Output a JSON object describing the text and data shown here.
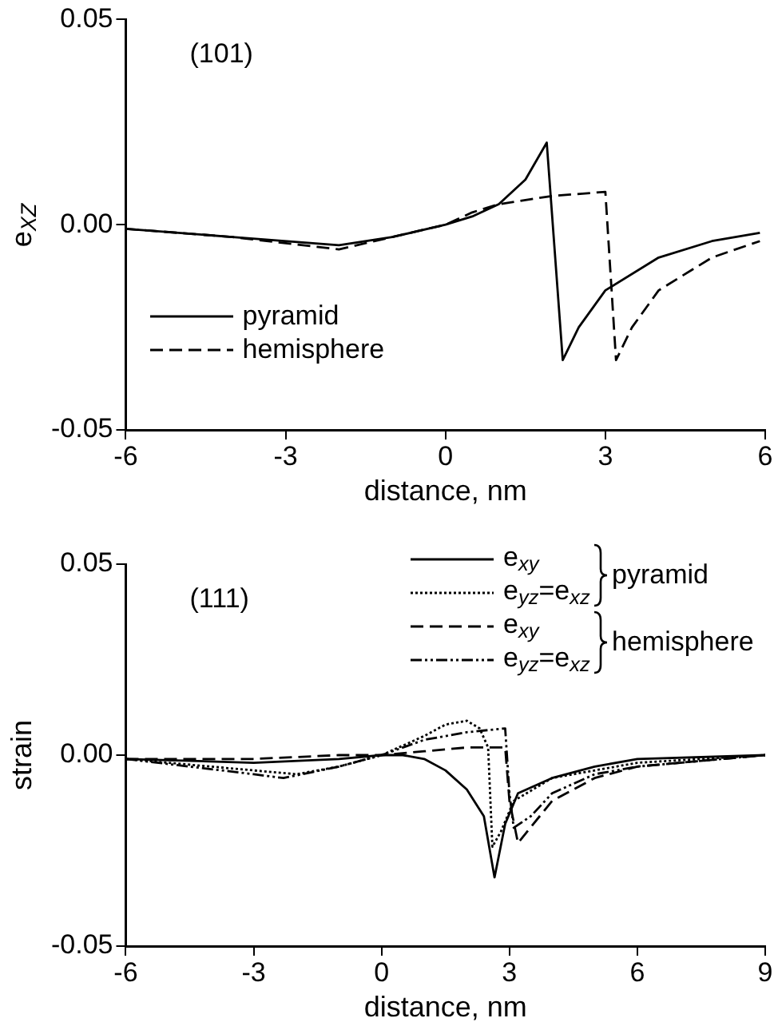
{
  "chart_data": [
    {
      "type": "line",
      "ylabel": "e$_{XZ}$",
      "xlabel": "distance, nm",
      "annotations": [
        "(101)"
      ],
      "xlim": [
        -6,
        6
      ],
      "xticks": [
        -6,
        -3,
        0,
        3,
        6
      ],
      "ylim": [
        -0.05,
        0.05
      ],
      "yticks": [
        {
          "value": -0.05,
          "label": "-0.05"
        },
        {
          "value": 0,
          "label": "0.00"
        },
        {
          "value": 0.05,
          "label": "0.05"
        }
      ],
      "grid": false,
      "legend": "bottom left",
      "marker": "none",
      "series": [
        {
          "name": "pyramid",
          "color": "#000000",
          "line_style": "solid",
          "x": [
            -6,
            -4,
            -2,
            -1,
            0,
            0.5,
            1,
            1.5,
            1.9,
            2.2,
            2.5,
            3,
            4,
            5,
            5.9
          ],
          "values": [
            -0.001,
            -0.003,
            -0.005,
            -0.003,
            0,
            0.002,
            0.005,
            0.011,
            0.02,
            -0.033,
            -0.025,
            -0.016,
            -0.008,
            -0.004,
            -0.002
          ]
        },
        {
          "name": "hemisphere",
          "color": "#000000",
          "line_style": "dashed",
          "x": [
            -6,
            -4,
            -2,
            -1,
            0,
            0.5,
            1,
            2,
            3,
            3.2,
            3.5,
            4,
            5,
            5.9
          ],
          "values": [
            -0.001,
            -0.003,
            -0.006,
            -0.003,
            0,
            0.003,
            0.005,
            0.007,
            0.008,
            -0.033,
            -0.025,
            -0.016,
            -0.008,
            -0.004
          ]
        }
      ]
    },
    {
      "type": "line",
      "ylabel": "strain",
      "xlabel": "distance, nm",
      "annotations": [
        "(111)",
        "pyramid",
        "hemisphere"
      ],
      "xlim": [
        -6,
        9
      ],
      "xticks": [
        -6,
        -3,
        0,
        3,
        6,
        9
      ],
      "ylim": [
        -0.05,
        0.05
      ],
      "yticks": [
        {
          "value": -0.05,
          "label": "-0.05"
        },
        {
          "value": 0,
          "label": "0.00"
        },
        {
          "value": 0.05,
          "label": "0.05"
        }
      ],
      "grid": false,
      "legend": "top right",
      "marker": "none",
      "series": [
        {
          "name": "e$_{xy}$",
          "color": "#000000",
          "line_style": "solid",
          "x": [
            -6,
            -3,
            -1,
            0,
            0.5,
            1,
            1.5,
            2,
            2.4,
            2.65,
            2.9,
            3.2,
            4,
            5,
            6,
            9
          ],
          "values": [
            -0.001,
            -0.002,
            -0.001,
            0,
            0,
            -0.001,
            -0.004,
            -0.009,
            -0.016,
            -0.032,
            -0.018,
            -0.01,
            -0.006,
            -0.003,
            -0.001,
            0
          ]
        },
        {
          "name": "e$_{yz}$=e$_{xz}$",
          "color": "#000000",
          "line_style": "dotted",
          "x": [
            -6,
            -3,
            -2,
            -1,
            0,
            1,
            1.5,
            2,
            2.3,
            2.5,
            2.6,
            2.8,
            3.1,
            4,
            6,
            9
          ],
          "values": [
            -0.001,
            -0.004,
            -0.005,
            -0.003,
            0,
            0.005,
            0.008,
            0.009,
            0.007,
            0.002,
            -0.024,
            -0.02,
            -0.012,
            -0.006,
            -0.002,
            0
          ]
        },
        {
          "name": "e$_{xy}$",
          "color": "#000000",
          "line_style": "dashed",
          "x": [
            -6,
            -3,
            -1,
            0,
            1,
            2,
            2.9,
            3,
            3.2,
            4,
            5,
            6,
            7,
            9
          ],
          "values": [
            -0.001,
            -0.001,
            0,
            0,
            0.001,
            0.002,
            0.002,
            -0.012,
            -0.023,
            -0.012,
            -0.006,
            -0.003,
            -0.002,
            0
          ]
        },
        {
          "name": "e$_{yz}$=e$_{xz}$",
          "color": "#000000",
          "line_style": "dashdot",
          "x": [
            -6,
            -3,
            -2.3,
            -1,
            0,
            1,
            2,
            2.9,
            3,
            3.1,
            3.5,
            4,
            5,
            6,
            9
          ],
          "values": [
            -0.001,
            -0.005,
            -0.006,
            -0.003,
            0,
            0.004,
            0.006,
            0.007,
            -0.01,
            -0.019,
            -0.016,
            -0.01,
            -0.005,
            -0.003,
            0
          ]
        }
      ]
    }
  ]
}
